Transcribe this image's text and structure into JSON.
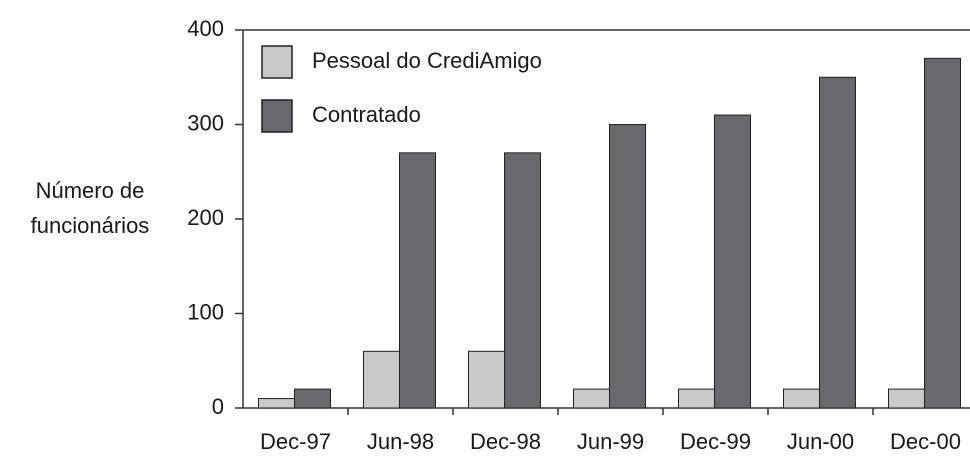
{
  "chart_data": {
    "type": "bar",
    "ylabel": [
      "Número de",
      "funcionários"
    ],
    "categories": [
      "Dec-97",
      "Jun-98",
      "Dec-98",
      "Jun-99",
      "Dec-99",
      "Jun-00",
      "Dec-00"
    ],
    "series": [
      {
        "name": "Pessoal do CrediAmigo",
        "color": "#c9c9c9",
        "values": [
          10,
          60,
          60,
          20,
          20,
          20,
          20
        ]
      },
      {
        "name": "Contratado",
        "color": "#69696d",
        "values": [
          20,
          270,
          270,
          300,
          310,
          350,
          370
        ]
      }
    ],
    "ylim": [
      0,
      400
    ],
    "yticks": [
      0,
      100,
      200,
      300,
      400
    ],
    "grid": false,
    "legend": "top-left"
  }
}
